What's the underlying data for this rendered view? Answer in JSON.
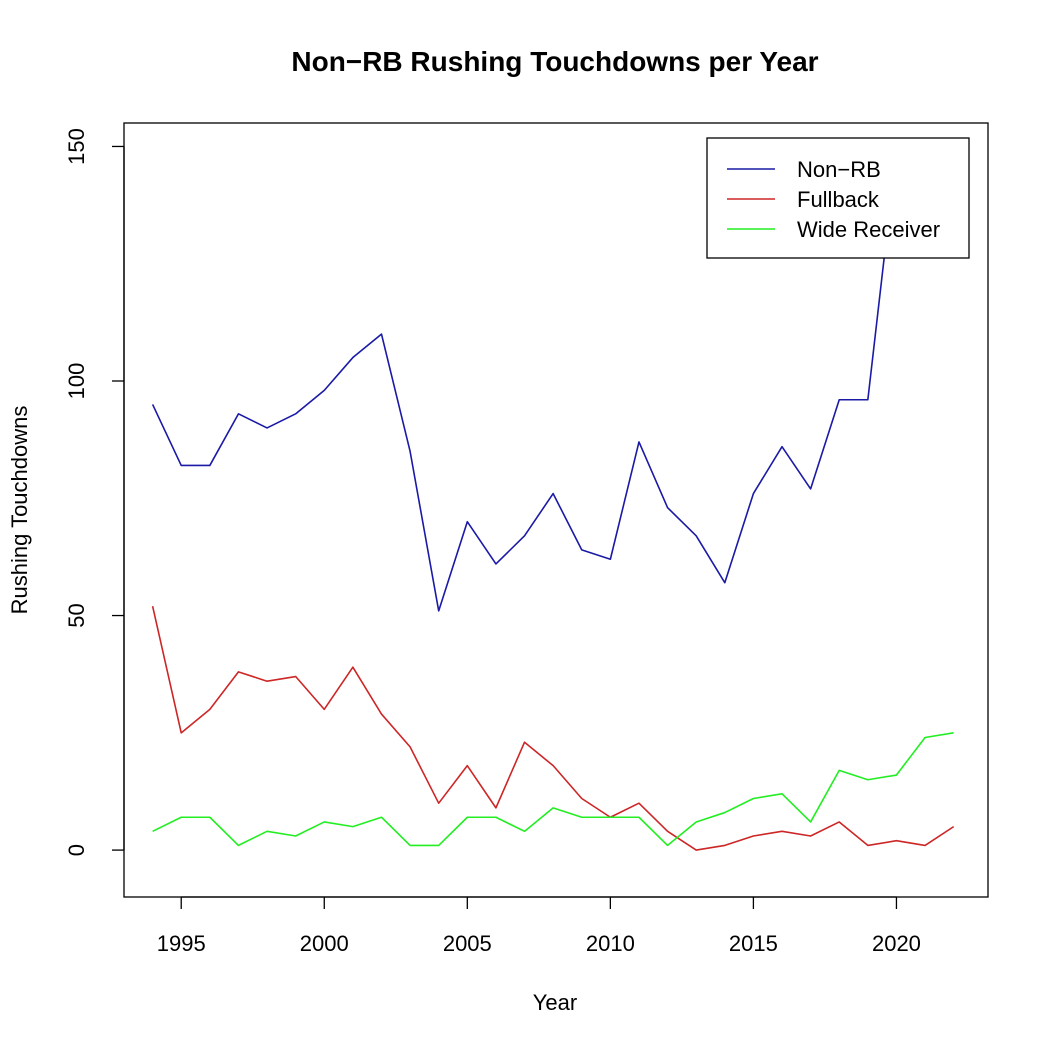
{
  "chart_data": {
    "type": "line",
    "title": "Non−RB Rushing Touchdowns per Year",
    "xlabel": "Year",
    "ylabel": "Rushing Touchdowns",
    "xlim": [
      1993,
      2023.2
    ],
    "ylim": [
      -10,
      155
    ],
    "x_ticks": [
      1995,
      2000,
      2005,
      2010,
      2015,
      2020
    ],
    "y_ticks": [
      0,
      50,
      100,
      150
    ],
    "legend_position": "top-right",
    "x": [
      1994,
      1995,
      1996,
      1997,
      1998,
      1999,
      2000,
      2001,
      2002,
      2003,
      2004,
      2005,
      2006,
      2007,
      2008,
      2009,
      2010,
      2011,
      2012,
      2013,
      2014,
      2015,
      2016,
      2017,
      2018,
      2019,
      2020,
      2021,
      2022
    ],
    "series": [
      {
        "name": "Non−RB",
        "color": "#1a1aa6",
        "values": [
          95,
          82,
          82,
          93,
          90,
          93,
          98,
          105,
          110,
          85,
          51,
          70,
          61,
          67,
          76,
          64,
          62,
          87,
          73,
          67,
          57,
          76,
          86,
          77,
          96,
          96,
          149,
          128,
          138
        ]
      },
      {
        "name": "Fullback",
        "color": "#cd2626",
        "values": [
          52,
          25,
          30,
          38,
          36,
          37,
          30,
          39,
          29,
          22,
          10,
          18,
          9,
          23,
          18,
          11,
          7,
          10,
          4,
          0,
          1,
          3,
          4,
          3,
          6,
          1,
          2,
          1,
          5
        ]
      },
      {
        "name": "Wide Receiver",
        "color": "#22ee22",
        "values": [
          4,
          7,
          7,
          1,
          4,
          3,
          6,
          5,
          7,
          1,
          1,
          7,
          7,
          4,
          9,
          7,
          7,
          7,
          1,
          6,
          8,
          11,
          12,
          6,
          17,
          15,
          16,
          24,
          25
        ]
      }
    ]
  }
}
